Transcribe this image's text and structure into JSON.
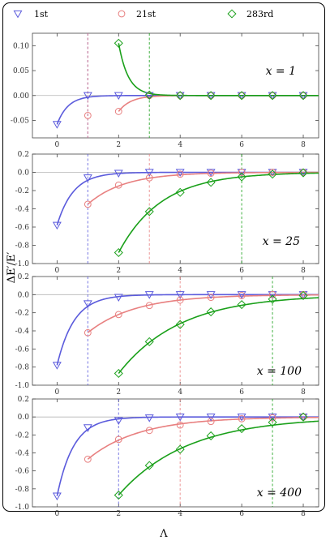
{
  "axes": {
    "ylabel": "ΔE′/E′",
    "xlabel": "Λ"
  },
  "legend": [
    {
      "label": "1st",
      "color": "#5b5bdc",
      "marker": "triangle-down"
    },
    {
      "label": "21st",
      "color": "#e88080",
      "marker": "circle"
    },
    {
      "label": "283rd",
      "color": "#1aa01a",
      "marker": "diamond"
    }
  ],
  "chart_data": [
    {
      "type": "scatter",
      "title": "x = 1",
      "xlim": [
        -0.8,
        8.5
      ],
      "ylim": [
        -0.085,
        0.125
      ],
      "yticks": [
        0.1,
        0.05,
        0.0,
        -0.05
      ],
      "ytick_labels": [
        "0.10",
        "0.05",
        "0.00",
        "-0.05"
      ],
      "xticks": [
        0,
        2,
        4,
        6,
        8
      ],
      "xtick_labels": [
        "0",
        "2",
        "4",
        "6",
        "8"
      ],
      "vlines": [
        1,
        1,
        3
      ],
      "series": [
        {
          "name": "1st",
          "x": [
            0,
            1,
            2,
            3,
            4,
            5,
            6,
            7,
            8
          ],
          "y": [
            -0.058,
            0.0,
            0.0,
            0.0,
            0.0,
            0.0,
            0.0,
            0.0,
            0.0
          ],
          "curve": {
            "x0": 0,
            "a": -0.058,
            "k": 2.8
          }
        },
        {
          "name": "21st",
          "x": [
            1,
            2,
            3,
            4,
            5,
            6,
            7,
            8
          ],
          "y": [
            -0.04,
            -0.032,
            0.0,
            0.0,
            0.0,
            0.0,
            0.0,
            0.0
          ],
          "curve": {
            "x0": 2,
            "a": -0.032,
            "k": 2.5
          }
        },
        {
          "name": "283rd",
          "x": [
            2,
            3,
            4,
            5,
            6,
            7,
            8
          ],
          "y": [
            0.105,
            0.001,
            0.0,
            0.0,
            0.0,
            0.0,
            0.0
          ],
          "curve": {
            "x0": 2,
            "a": 0.105,
            "k": 3.2
          }
        }
      ]
    },
    {
      "type": "scatter",
      "title": "x = 25",
      "xlim": [
        -0.8,
        8.5
      ],
      "ylim": [
        -1.0,
        0.2
      ],
      "yticks": [
        0.2,
        0.0,
        -0.2,
        -0.4,
        -0.6,
        -0.8,
        -1.0
      ],
      "ytick_labels": [
        "0.2",
        "0.0",
        "-0.2",
        "-0.4",
        "-0.6",
        "-0.8",
        "-1.0"
      ],
      "xticks": [
        0,
        2,
        4,
        6,
        8
      ],
      "xtick_labels": [
        "0",
        "2",
        "4",
        "6",
        "8"
      ],
      "vlines": [
        1,
        3,
        6
      ],
      "series": [
        {
          "name": "1st",
          "x": [
            0,
            1,
            2,
            3,
            4,
            5,
            6,
            7,
            8
          ],
          "y": [
            -0.58,
            -0.06,
            -0.01,
            0.0,
            0.0,
            0.0,
            0.0,
            0.0,
            0.0
          ],
          "curve": {
            "x0": 0,
            "a": -0.58,
            "k": 1.9
          }
        },
        {
          "name": "21st",
          "x": [
            1,
            2,
            3,
            4,
            5,
            6,
            7,
            8
          ],
          "y": [
            -0.35,
            -0.14,
            -0.06,
            -0.02,
            -0.01,
            0.0,
            0.0,
            0.0
          ],
          "curve": {
            "x0": 1,
            "a": -0.35,
            "k": 0.85
          }
        },
        {
          "name": "283rd",
          "x": [
            2,
            3,
            4,
            5,
            6,
            7,
            8
          ],
          "y": [
            -0.88,
            -0.43,
            -0.22,
            -0.11,
            -0.05,
            -0.02,
            -0.005
          ],
          "curve": {
            "x0": 2,
            "a": -0.88,
            "k": 0.72
          }
        }
      ]
    },
    {
      "type": "scatter",
      "title": "x = 100",
      "xlim": [
        -0.8,
        8.5
      ],
      "ylim": [
        -1.0,
        0.2
      ],
      "yticks": [
        0.2,
        0.0,
        -0.2,
        -0.4,
        -0.6,
        -0.8,
        -1.0
      ],
      "ytick_labels": [
        "0.2",
        "0.0",
        "-0.2",
        "-0.4",
        "-0.6",
        "-0.8",
        "-1.0"
      ],
      "xticks": [
        0,
        2,
        4,
        6,
        8
      ],
      "xtick_labels": [
        "0",
        "2",
        "4",
        "6",
        "8"
      ],
      "vlines": [
        1,
        4,
        7
      ],
      "series": [
        {
          "name": "1st",
          "x": [
            0,
            1,
            2,
            3,
            4,
            5,
            6,
            7,
            8
          ],
          "y": [
            -0.78,
            -0.1,
            -0.03,
            0.0,
            0.0,
            0.0,
            0.0,
            0.0,
            0.0
          ],
          "curve": {
            "x0": 0,
            "a": -0.78,
            "k": 1.8
          }
        },
        {
          "name": "21st",
          "x": [
            1,
            2,
            3,
            4,
            5,
            6,
            7,
            8
          ],
          "y": [
            -0.42,
            -0.22,
            -0.12,
            -0.06,
            -0.03,
            -0.01,
            0.0,
            0.0
          ],
          "curve": {
            "x0": 1,
            "a": -0.42,
            "k": 0.65
          }
        },
        {
          "name": "283rd",
          "x": [
            2,
            3,
            4,
            5,
            6,
            7,
            8
          ],
          "y": [
            -0.87,
            -0.52,
            -0.33,
            -0.19,
            -0.11,
            -0.05,
            -0.01
          ],
          "curve": {
            "x0": 2,
            "a": -0.87,
            "k": 0.5
          }
        }
      ]
    },
    {
      "type": "scatter",
      "title": "x = 400",
      "xlim": [
        -0.8,
        8.5
      ],
      "ylim": [
        -1.0,
        0.2
      ],
      "yticks": [
        0.2,
        0.0,
        -0.2,
        -0.4,
        -0.6,
        -0.8,
        -1.0
      ],
      "ytick_labels": [
        "0.2",
        "0.0",
        "-0.2",
        "-0.4",
        "-0.6",
        "-0.8",
        "-1.0"
      ],
      "xticks": [
        0,
        2,
        4,
        6,
        8
      ],
      "xtick_labels": [
        "0",
        "2",
        "4",
        "6",
        "8"
      ],
      "vlines": [
        2,
        4,
        7
      ],
      "series": [
        {
          "name": "1st",
          "x": [
            0,
            1,
            2,
            3,
            4,
            5,
            6,
            7,
            8
          ],
          "y": [
            -0.88,
            -0.12,
            -0.04,
            -0.01,
            0.0,
            0.0,
            0.0,
            0.0,
            0.0
          ],
          "curve": {
            "x0": 0,
            "a": -0.88,
            "k": 1.85
          }
        },
        {
          "name": "21st",
          "x": [
            1,
            2,
            3,
            4,
            5,
            6,
            7,
            8
          ],
          "y": [
            -0.47,
            -0.25,
            -0.15,
            -0.09,
            -0.05,
            -0.02,
            -0.01,
            0.0
          ],
          "curve": {
            "x0": 1,
            "a": -0.47,
            "k": 0.6
          }
        },
        {
          "name": "283rd",
          "x": [
            2,
            3,
            4,
            5,
            6,
            7,
            8
          ],
          "y": [
            -0.87,
            -0.54,
            -0.36,
            -0.21,
            -0.13,
            -0.06,
            0.0
          ],
          "curve": {
            "x0": 2,
            "a": -0.87,
            "k": 0.45
          }
        }
      ]
    }
  ]
}
